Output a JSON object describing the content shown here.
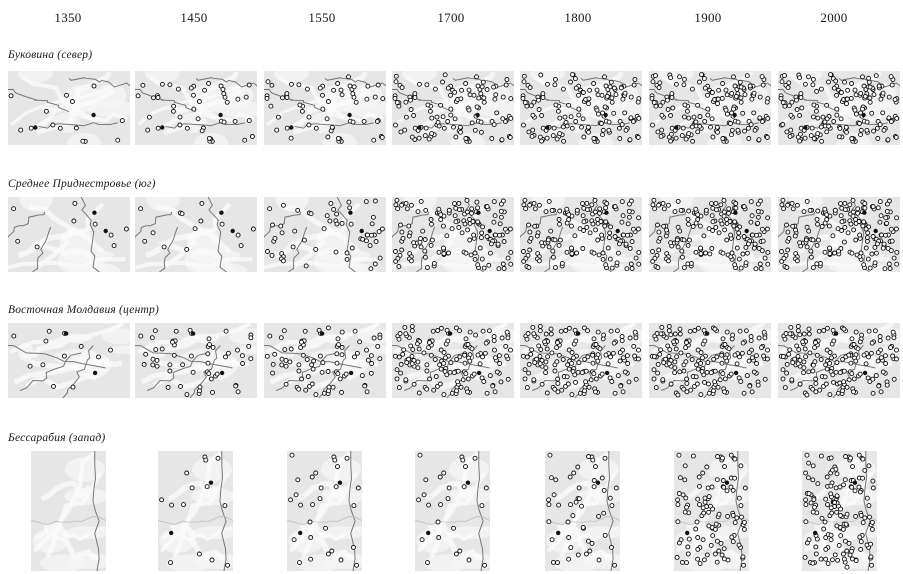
{
  "years": [
    "1350",
    "1450",
    "1550",
    "1700",
    "1800",
    "1900",
    "2000"
  ],
  "regions": [
    {
      "id": "bukovina",
      "label": "Буковина (север)",
      "settlement_counts": [
        14,
        44,
        60,
        120,
        150,
        170,
        180
      ]
    },
    {
      "id": "middle-dniester",
      "label": "Среднее Приднестровье (юг)",
      "settlement_counts": [
        9,
        14,
        55,
        145,
        160,
        175,
        180
      ]
    },
    {
      "id": "east-moldavia",
      "label": "Восточная Молдавия (центр)",
      "settlement_counts": [
        12,
        55,
        80,
        150,
        165,
        175,
        180
      ]
    },
    {
      "id": "bessarabia",
      "label": "Бессарабия (запад)",
      "settlement_counts": [
        0,
        14,
        28,
        26,
        50,
        110,
        150
      ]
    }
  ],
  "colors": {
    "background": "#ffffff",
    "map_fill": "#e6e6e6",
    "map_light": "#f7f7f7",
    "river": "#777777",
    "road": "#bdbdbd",
    "settlement_stroke": "#111111",
    "settlement_fill": "#ffffff",
    "text": "#1a1a1a"
  },
  "icons": {
    "settlement": "settlement-circle-icon",
    "town": "town-dot-icon"
  }
}
